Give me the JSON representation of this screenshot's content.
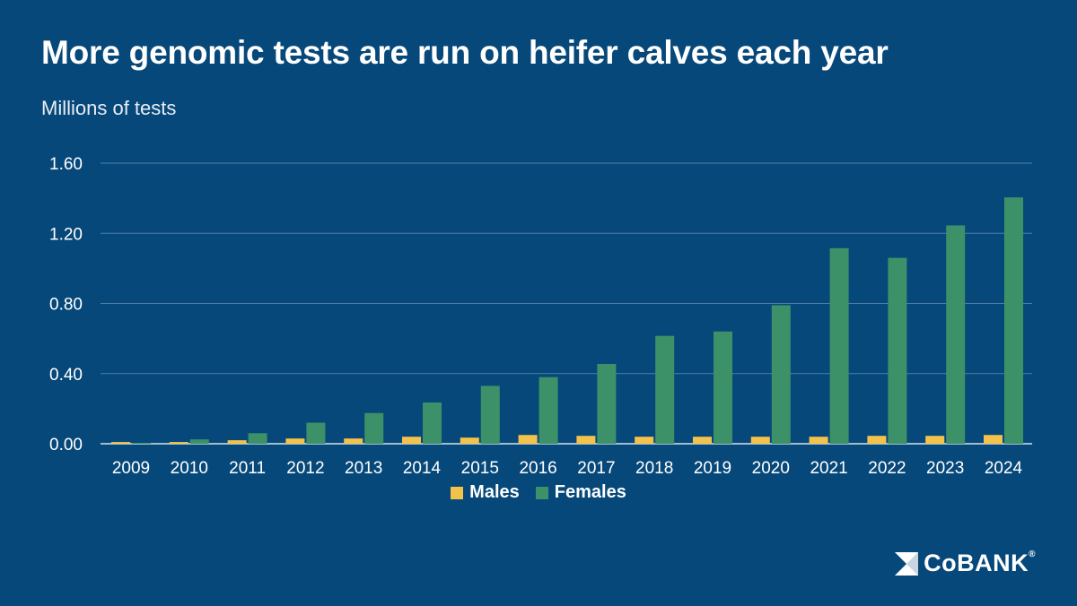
{
  "title": "More genomic tests are run on heifer calves each year",
  "subtitle": "Millions of tests",
  "colors": {
    "background": "#07487a",
    "males": "#f3c24a",
    "females": "#3d9168",
    "grid": "#4f7fa6",
    "axis": "#d9e3ec"
  },
  "logo": {
    "text": "CoBANK",
    "mark": "®",
    "icon": "cobank-logo-icon"
  },
  "chart_data": {
    "type": "bar",
    "categories": [
      "2009",
      "2010",
      "2011",
      "2012",
      "2013",
      "2014",
      "2015",
      "2016",
      "2017",
      "2018",
      "2019",
      "2020",
      "2021",
      "2022",
      "2023",
      "2024"
    ],
    "series": [
      {
        "name": "Males",
        "values": [
          0.01,
          0.01,
          0.02,
          0.03,
          0.03,
          0.04,
          0.035,
          0.05,
          0.045,
          0.04,
          0.04,
          0.04,
          0.04,
          0.045,
          0.045,
          0.05
        ]
      },
      {
        "name": "Females",
        "values": [
          0.005,
          0.025,
          0.06,
          0.12,
          0.175,
          0.235,
          0.33,
          0.38,
          0.455,
          0.615,
          0.64,
          0.79,
          1.115,
          1.06,
          1.245,
          1.405
        ]
      }
    ],
    "ylim": [
      0,
      1.6
    ],
    "yticks": [
      "0.00",
      "0.40",
      "0.80",
      "1.20",
      "1.60"
    ],
    "grid": true,
    "legend": "bottom-center"
  }
}
